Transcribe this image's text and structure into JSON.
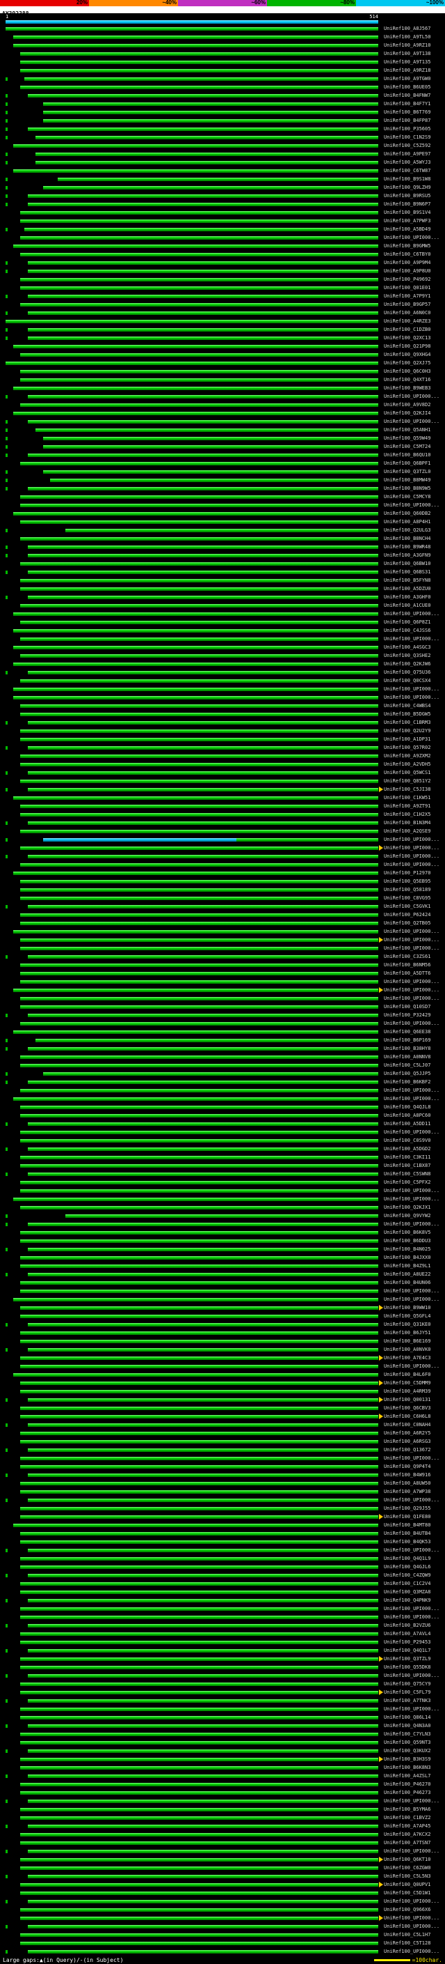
{
  "scale_bar": {
    "segments": [
      {
        "label": "20%",
        "color": "#e60000"
      },
      {
        "label": "~40%",
        "color": "#ff8800"
      },
      {
        "label": "~60%",
        "color": "#c030c0"
      },
      {
        "label": "~80%",
        "color": "#00b400"
      },
      {
        "label": "~100%",
        "color": "#00c8f0"
      }
    ]
  },
  "legend": {
    "gaps_text": "Large gaps:▲(in Query)/-(in Subject)",
    "marker_label": "=100char."
  },
  "colors": {
    "background": "#000000",
    "hit_bar": "#00cc00",
    "query_bar": "#00ccff",
    "high_identity_segment": "#00bbee",
    "gap_arrow": "#ffcc00",
    "label_text": "#d8d8d8"
  },
  "chart_data": {
    "type": "bar",
    "title": "AY392388",
    "query_start_label": "1",
    "query_end_label": "514",
    "query_length": 514,
    "x_range": [
      1,
      514
    ],
    "label_prefix": "UniRef100_",
    "hits": [
      {
        "id": "A8J567",
        "s": 0
      },
      {
        "id": "A9TL50",
        "s": 2
      },
      {
        "id": "A9RZ10",
        "s": 2
      },
      {
        "id": "A9T138",
        "s": 4
      },
      {
        "id": "A9T135",
        "s": 4
      },
      {
        "id": "A9RZ18",
        "s": 4
      },
      {
        "id": "A9TGW0",
        "s": 5
      },
      {
        "id": "B6UE05",
        "s": 4
      },
      {
        "id": "B4FNW7",
        "s": 6
      },
      {
        "id": "B4F7Y1",
        "s": 10
      },
      {
        "id": "B6T769",
        "s": 10
      },
      {
        "id": "B4FP87",
        "s": 10
      },
      {
        "id": "P35605",
        "s": 6
      },
      {
        "id": "C1N2S9",
        "s": 8
      },
      {
        "id": "C5Z592",
        "s": 2
      },
      {
        "id": "A9PE97",
        "s": 8
      },
      {
        "id": "A5WYJ3",
        "s": 8
      },
      {
        "id": "C6TW87",
        "s": 2
      },
      {
        "id": "B9S1W8",
        "s": 14
      },
      {
        "id": "Q9LZH9",
        "s": 10
      },
      {
        "id": "B9RSU5",
        "s": 6
      },
      {
        "id": "B9N6P7",
        "s": 6
      },
      {
        "id": "B9S1V4",
        "s": 4
      },
      {
        "id": "A7PWF3",
        "s": 4
      },
      {
        "id": "A5BD49",
        "s": 5
      },
      {
        "id": "UPI000...",
        "s": 4
      },
      {
        "id": "B9GMW5",
        "s": 2
      },
      {
        "id": "C6TBY0",
        "s": 4
      },
      {
        "id": "A9P9M4",
        "s": 6
      },
      {
        "id": "A9P8U0",
        "s": 6
      },
      {
        "id": "P49692",
        "s": 4
      },
      {
        "id": "Q01E01",
        "s": 4
      },
      {
        "id": "A7P9Y1",
        "s": 6
      },
      {
        "id": "B9GP57",
        "s": 4
      },
      {
        "id": "A6N0C0",
        "s": 6
      },
      {
        "id": "A4RZE3",
        "s": 0
      },
      {
        "id": "C1DZB0",
        "s": 6
      },
      {
        "id": "Q2XC13",
        "s": 6
      },
      {
        "id": "Q21P98",
        "s": 2
      },
      {
        "id": "Q9XHG4",
        "s": 4
      },
      {
        "id": "Q2XJ75",
        "s": 0
      },
      {
        "id": "Q6C0H3",
        "s": 4
      },
      {
        "id": "Q4XT16",
        "s": 4
      },
      {
        "id": "B9WEB3",
        "s": 2
      },
      {
        "id": "UPI000...",
        "s": 6
      },
      {
        "id": "A9V8D2",
        "s": 4
      },
      {
        "id": "Q2KJI4",
        "s": 2
      },
      {
        "id": "UPI000...",
        "s": 6
      },
      {
        "id": "Q5ANH1",
        "s": 8
      },
      {
        "id": "Q59W49",
        "s": 10
      },
      {
        "id": "C5M724",
        "s": 10
      },
      {
        "id": "B6QU10",
        "s": 6
      },
      {
        "id": "Q6BPF1",
        "s": 4
      },
      {
        "id": "Q3TZL0",
        "s": 10
      },
      {
        "id": "B8MW49",
        "s": 12
      },
      {
        "id": "B8N9W5",
        "s": 6
      },
      {
        "id": "C5MCY8",
        "s": 4
      },
      {
        "id": "UPI000...",
        "s": 4
      },
      {
        "id": "Q60DB2",
        "s": 2
      },
      {
        "id": "A8P4H1",
        "s": 4
      },
      {
        "id": "Q2ULG3",
        "s": 16
      },
      {
        "id": "B8NCH4",
        "s": 4
      },
      {
        "id": "B9WR48",
        "s": 6
      },
      {
        "id": "A3GFN9",
        "s": 6
      },
      {
        "id": "Q6BW10",
        "s": 4
      },
      {
        "id": "Q6BS31",
        "s": 6
      },
      {
        "id": "B5FYN8",
        "s": 4
      },
      {
        "id": "A5DZU0",
        "s": 4
      },
      {
        "id": "A3GHF0",
        "s": 6
      },
      {
        "id": "A1CUE0",
        "s": 4
      },
      {
        "id": "UPI000...",
        "s": 2
      },
      {
        "id": "Q6P8Z1",
        "s": 4
      },
      {
        "id": "C4JSS6",
        "s": 2
      },
      {
        "id": "UPI000...",
        "s": 4
      },
      {
        "id": "A4SGC3",
        "s": 2
      },
      {
        "id": "Q3SHE2",
        "s": 4
      },
      {
        "id": "Q2KJW6",
        "s": 2
      },
      {
        "id": "Q75U36",
        "s": 6
      },
      {
        "id": "Q0CSX4",
        "s": 4
      },
      {
        "id": "UPI000...",
        "s": 2
      },
      {
        "id": "UPI000...",
        "s": 2
      },
      {
        "id": "C4WBS4",
        "s": 4
      },
      {
        "id": "B5DGW5",
        "s": 4
      },
      {
        "id": "C1BRM3",
        "s": 6
      },
      {
        "id": "Q2U2Y9",
        "s": 4
      },
      {
        "id": "A1DP31",
        "s": 4
      },
      {
        "id": "Q57R02",
        "s": 6
      },
      {
        "id": "A9ZXM2",
        "s": 4
      },
      {
        "id": "A2VDH5",
        "s": 4
      },
      {
        "id": "Q5WCS1",
        "s": 6
      },
      {
        "id": "Q851Y2",
        "s": 4
      },
      {
        "id": "C5JI38",
        "s": 6,
        "a": 1
      },
      {
        "id": "C1KW51",
        "s": 2
      },
      {
        "id": "A9ZT91",
        "s": 4
      },
      {
        "id": "C1H2X5",
        "s": 4
      },
      {
        "id": "B1N3M4",
        "s": 6
      },
      {
        "id": "A2QSE9",
        "s": 4
      },
      {
        "id": "UPI000...",
        "s": 10,
        "blue_to": 62
      },
      {
        "id": "UPI000...",
        "s": 4,
        "a": 1
      },
      {
        "id": "UPI000...",
        "s": 6
      },
      {
        "id": "UPI000...",
        "s": 4
      },
      {
        "id": "P12970",
        "s": 2
      },
      {
        "id": "Q5EB95",
        "s": 4
      },
      {
        "id": "Q58189",
        "s": 4
      },
      {
        "id": "C8VG95",
        "s": 4
      },
      {
        "id": "C5GVK1",
        "s": 6
      },
      {
        "id": "P62424",
        "s": 4
      },
      {
        "id": "Q2TB05",
        "s": 4
      },
      {
        "id": "UPI000...",
        "s": 2
      },
      {
        "id": "UPI000...",
        "s": 4,
        "a": 1
      },
      {
        "id": "UPI000...",
        "s": 4
      },
      {
        "id": "C3ZS61",
        "s": 6
      },
      {
        "id": "B6NM56",
        "s": 4
      },
      {
        "id": "A5DTT6",
        "s": 4
      },
      {
        "id": "UPI000...",
        "s": 4
      },
      {
        "id": "UPI000...",
        "s": 2,
        "a": 1
      },
      {
        "id": "UPI000...",
        "s": 4
      },
      {
        "id": "Q10SD7",
        "s": 4
      },
      {
        "id": "P32429",
        "s": 6
      },
      {
        "id": "UPI000...",
        "s": 4
      },
      {
        "id": "Q6EE38",
        "s": 2
      },
      {
        "id": "B6P169",
        "s": 8
      },
      {
        "id": "B38HY8",
        "s": 6
      },
      {
        "id": "A0NNV8",
        "s": 4
      },
      {
        "id": "C5LJ07",
        "s": 4
      },
      {
        "id": "Q5JJP5",
        "s": 10
      },
      {
        "id": "B6KBF2",
        "s": 6
      },
      {
        "id": "UPI000...",
        "s": 4
      },
      {
        "id": "UPI000...",
        "s": 2
      },
      {
        "id": "Q4QJL8",
        "s": 4
      },
      {
        "id": "A8PC60",
        "s": 4
      },
      {
        "id": "A5DD11",
        "s": 6
      },
      {
        "id": "UPI000...",
        "s": 4
      },
      {
        "id": "C0S9V0",
        "s": 4
      },
      {
        "id": "A5DGD2",
        "s": 6
      },
      {
        "id": "C3KI11",
        "s": 4
      },
      {
        "id": "C1BX87",
        "s": 4
      },
      {
        "id": "C5SWN8",
        "s": 6
      },
      {
        "id": "C5PFX2",
        "s": 4
      },
      {
        "id": "UPI000...",
        "s": 4
      },
      {
        "id": "UPI000...",
        "s": 2
      },
      {
        "id": "Q2KJX1",
        "s": 4
      },
      {
        "id": "Q9VYW2",
        "s": 16
      },
      {
        "id": "UPI000...",
        "s": 6
      },
      {
        "id": "B6K8V5",
        "s": 4
      },
      {
        "id": "B6DDU3",
        "s": 4
      },
      {
        "id": "B4N025",
        "s": 6
      },
      {
        "id": "B4JXX0",
        "s": 4
      },
      {
        "id": "B4Z9L1",
        "s": 4
      },
      {
        "id": "A8UE22",
        "s": 6
      },
      {
        "id": "B4UN06",
        "s": 4
      },
      {
        "id": "UPI000...",
        "s": 4
      },
      {
        "id": "UPI000...",
        "s": 2
      },
      {
        "id": "B9WW10",
        "s": 4,
        "a": 1
      },
      {
        "id": "Q5GFL4",
        "s": 4
      },
      {
        "id": "Q31KE0",
        "s": 6
      },
      {
        "id": "B6JY51",
        "s": 4
      },
      {
        "id": "B6E169",
        "s": 4
      },
      {
        "id": "A0NVK0",
        "s": 6
      },
      {
        "id": "A7E4C3",
        "s": 4,
        "a": 1
      },
      {
        "id": "UPI000...",
        "s": 4
      },
      {
        "id": "B4L6F0",
        "s": 2
      },
      {
        "id": "C5DMM9",
        "s": 4,
        "a": 1
      },
      {
        "id": "A4RM39",
        "s": 4
      },
      {
        "id": "Q00131",
        "s": 6,
        "a": 1
      },
      {
        "id": "Q6CBV3",
        "s": 4
      },
      {
        "id": "C6H6L8",
        "s": 4,
        "a": 1
      },
      {
        "id": "C0NAH4",
        "s": 6
      },
      {
        "id": "A6R2Y5",
        "s": 4
      },
      {
        "id": "A6RSG3",
        "s": 4
      },
      {
        "id": "Q13672",
        "s": 6
      },
      {
        "id": "UPI000...",
        "s": 4
      },
      {
        "id": "Q9P4T4",
        "s": 4
      },
      {
        "id": "B4W916",
        "s": 6
      },
      {
        "id": "A8UW50",
        "s": 4
      },
      {
        "id": "A7WP38",
        "s": 4
      },
      {
        "id": "UPI000...",
        "s": 6
      },
      {
        "id": "Q29J55",
        "s": 4
      },
      {
        "id": "Q1FE80",
        "s": 4,
        "a": 1
      },
      {
        "id": "B4MT80",
        "s": 2
      },
      {
        "id": "B4UTB4",
        "s": 4
      },
      {
        "id": "B4QK53",
        "s": 4
      },
      {
        "id": "UPI000...",
        "s": 6
      },
      {
        "id": "Q4Q1L9",
        "s": 4
      },
      {
        "id": "Q4GJL6",
        "s": 4
      },
      {
        "id": "C4ZQW9",
        "s": 6
      },
      {
        "id": "C1C2V4",
        "s": 4
      },
      {
        "id": "Q3MZA8",
        "s": 4
      },
      {
        "id": "Q4PNK9",
        "s": 6
      },
      {
        "id": "UPI000...",
        "s": 4
      },
      {
        "id": "UPI000...",
        "s": 4
      },
      {
        "id": "B2VZU6",
        "s": 6
      },
      {
        "id": "A7AVL4",
        "s": 4
      },
      {
        "id": "P29453",
        "s": 4
      },
      {
        "id": "Q4Q1L7",
        "s": 6
      },
      {
        "id": "Q3TZL9",
        "s": 4,
        "a": 1
      },
      {
        "id": "Q55DK8",
        "s": 4
      },
      {
        "id": "UPI000...",
        "s": 6
      },
      {
        "id": "Q75CY9",
        "s": 4
      },
      {
        "id": "C5FL79",
        "s": 4,
        "a": 1
      },
      {
        "id": "A7TNK3",
        "s": 6
      },
      {
        "id": "UPI000...",
        "s": 4
      },
      {
        "id": "Q86L14",
        "s": 4
      },
      {
        "id": "Q4N3A0",
        "s": 6
      },
      {
        "id": "C7YLN3",
        "s": 4
      },
      {
        "id": "Q59NT3",
        "s": 4
      },
      {
        "id": "Q3KUX2",
        "s": 6
      },
      {
        "id": "B3H3S9",
        "s": 4,
        "a": 1
      },
      {
        "id": "B6K8N3",
        "s": 4
      },
      {
        "id": "A4ZSL7",
        "s": 6
      },
      {
        "id": "P46270",
        "s": 4
      },
      {
        "id": "P46273",
        "s": 4
      },
      {
        "id": "UPI000...",
        "s": 6
      },
      {
        "id": "B5YMA6",
        "s": 4
      },
      {
        "id": "C1BVZ2",
        "s": 4
      },
      {
        "id": "A7AP45",
        "s": 6
      },
      {
        "id": "A7KCX2",
        "s": 4
      },
      {
        "id": "A7TSN7",
        "s": 4
      },
      {
        "id": "UPI000...",
        "s": 6
      },
      {
        "id": "Q6KT10",
        "s": 4,
        "a": 1
      },
      {
        "id": "C6ZGW0",
        "s": 4
      },
      {
        "id": "C5L5N3",
        "s": 6
      },
      {
        "id": "Q0UPV1",
        "s": 4,
        "a": 1
      },
      {
        "id": "C5D1W1",
        "s": 4
      },
      {
        "id": "UPI000...",
        "s": 6
      },
      {
        "id": "Q966X6",
        "s": 4
      },
      {
        "id": "UPI000...",
        "s": 4,
        "a": 1
      },
      {
        "id": "UPI000...",
        "s": 6
      },
      {
        "id": "C5L1H7",
        "s": 4
      },
      {
        "id": "C5T128",
        "s": 4
      },
      {
        "id": "UPI000...",
        "s": 6
      }
    ]
  }
}
